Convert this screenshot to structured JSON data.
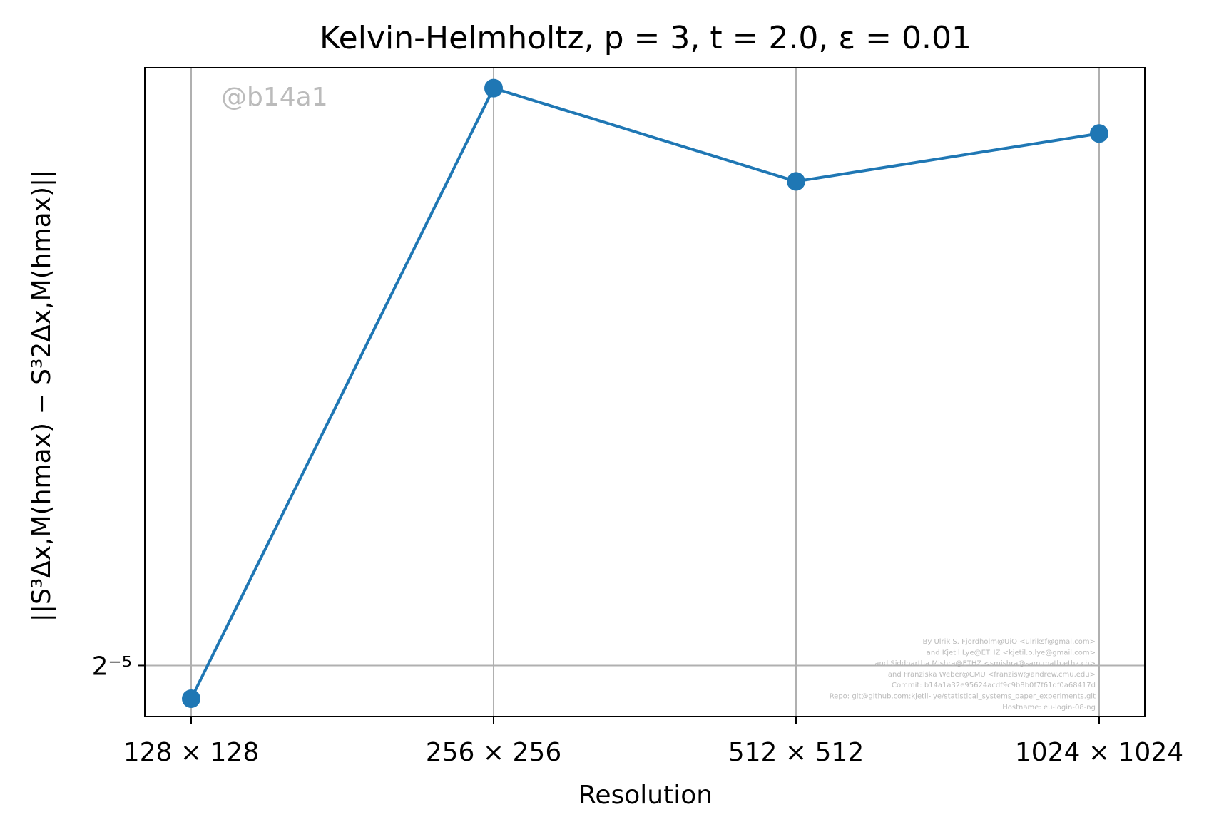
{
  "chart_data": {
    "type": "line",
    "title": "Kelvin-Helmholtz, p = 3, t = 2.0, ε = 0.01",
    "xlabel": "Resolution",
    "ylabel": "||S³Δx,M(hmax) − S³2Δx,M(hmax)||",
    "categories": [
      "128 × 128",
      "256 × 256",
      "512 × 512",
      "1024 × 1024"
    ],
    "y_scale": "log2",
    "ylim": [
      0.0295,
      0.0614
    ],
    "y_ticks": [
      {
        "value": 0.03125,
        "label": "2⁻⁵"
      }
    ],
    "series": [
      {
        "values": [
          0.0301,
          0.06,
          0.054,
          0.057
        ],
        "color": "#1f77b4"
      }
    ],
    "grid": true,
    "legend": "none"
  },
  "watermark": "@b14a1",
  "credits": [
    "By Ulrik S. Fjordholm@UiO <ulriksf@gmal.com>",
    "and Kjetil Lye@ETHZ <kjetil.o.lye@gmail.com>",
    "and Siddhartha Mishra@ETHZ <smishra@sam.math.ethz.ch>",
    "and Franziska Weber@CMU <franzisw@andrew.cmu.edu>",
    "Commit: b14a1a32e95624acdf9c9b8b0f7f61df0a68417d",
    "Repo: git@github.com:kjetil-lye/statistical_systems_paper_experiments.git",
    "Hostname: eu-login-08-ng"
  ]
}
